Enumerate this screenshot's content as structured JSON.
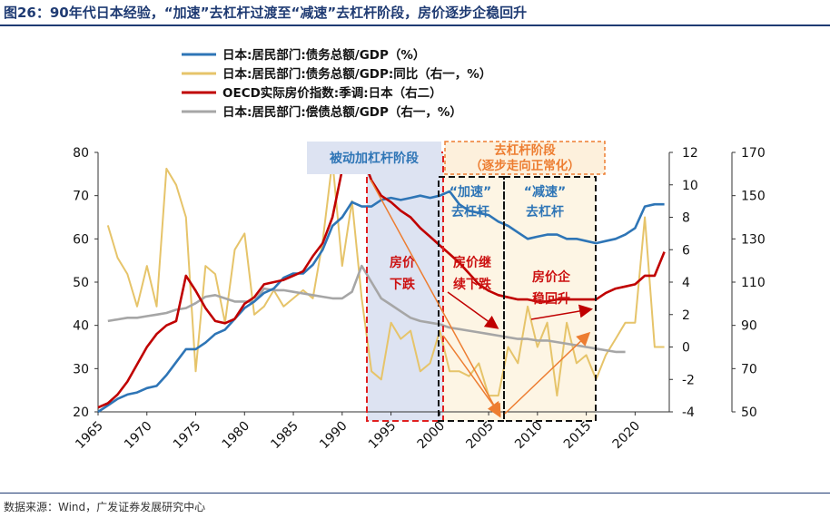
{
  "title": "图26：90年代日本经验，“加速”去杠杆过渡至“减速”去杠杆阶段，房价逐步企稳回升",
  "source": "数据来源：Wind，广发证券发展研究中心",
  "colors": {
    "debt_gdp": "#2e75b6",
    "debt_gdp_yoy": "#e6c46a",
    "house_price": "#c00000",
    "repay_gdp": "#a6a6a6",
    "red_box": "#e02020",
    "black_box": "#111111",
    "blue_shade": "#dde3f2",
    "yellow_shade": "#fdf5e4",
    "arrow": "#ed7d31"
  },
  "annotations": {
    "passive_stage": "被动加杠杆阶段",
    "delever_stage": "去杠杆阶段",
    "delever_sub": "（逐步走向正常化）",
    "accel_1": "“加速”",
    "accel_2": "去杠杆",
    "decel_1": "“减速”",
    "decel_2": "去杠杆",
    "price_fall_1": "房价",
    "price_fall_2": "下跌",
    "cont_fall_1": "房价继",
    "cont_fall_2": "续下跌",
    "stable_1": "房价企",
    "stable_2": "稳回升"
  },
  "chart_data": {
    "type": "line",
    "x_ticks": [
      "1965",
      "1970",
      "1975",
      "1980",
      "1985",
      "1990",
      "1995",
      "2000",
      "2005",
      "2010",
      "2015",
      "2020"
    ],
    "left_axis": {
      "ylim": [
        20,
        80
      ],
      "ticks": [
        "20",
        "30",
        "40",
        "50",
        "60",
        "70",
        "80"
      ]
    },
    "right1_axis": {
      "ylim": [
        -4,
        12
      ],
      "ticks": [
        "-4",
        "-2",
        "0",
        "2",
        "4",
        "6",
        "8",
        "10",
        "12"
      ]
    },
    "right2_axis": {
      "ylim": [
        50,
        170
      ],
      "ticks": [
        "50",
        "70",
        "90",
        "110",
        "130",
        "150",
        "170"
      ]
    },
    "series": [
      {
        "name": "日本:居民部门:债务总额/GDP（%）",
        "axis": "left",
        "x": [
          1965,
          1966,
          1967,
          1968,
          1969,
          1970,
          1971,
          1972,
          1973,
          1974,
          1975,
          1976,
          1977,
          1978,
          1979,
          1980,
          1981,
          1982,
          1983,
          1984,
          1985,
          1986,
          1987,
          1988,
          1989,
          1990,
          1991,
          1992,
          1993,
          1994,
          1995,
          1996,
          1997,
          1998,
          1999,
          2000,
          2001,
          2002,
          2003,
          2004,
          2005,
          2006,
          2007,
          2008,
          2009,
          2010,
          2011,
          2012,
          2013,
          2014,
          2015,
          2016,
          2017,
          2018,
          2019,
          2020,
          2021,
          2022,
          2023
        ],
        "y": [
          20,
          21.5,
          23,
          24,
          24.5,
          25.5,
          26,
          28.5,
          31.5,
          34.5,
          34.5,
          36,
          38,
          39,
          41.5,
          44,
          45.5,
          47.5,
          48.5,
          51,
          52,
          52,
          54,
          57.5,
          63,
          65,
          68.5,
          67.5,
          67.5,
          69,
          69.5,
          69,
          69.5,
          70,
          69.5,
          70,
          71,
          68,
          66.5,
          66,
          65.5,
          64,
          63,
          61.5,
          60,
          60.5,
          61,
          61,
          60,
          60,
          59.5,
          59,
          59.5,
          60,
          61,
          62.5,
          67.5,
          68,
          68
        ]
      },
      {
        "name": "日本:居民部门:债务总额/GDP:同比（右一，%）",
        "axis": "right1",
        "x": [
          1966,
          1967,
          1968,
          1969,
          1970,
          1971,
          1972,
          1973,
          1974,
          1975,
          1976,
          1977,
          1978,
          1979,
          1980,
          1981,
          1982,
          1983,
          1984,
          1985,
          1986,
          1987,
          1988,
          1989,
          1990,
          1991,
          1992,
          1993,
          1994,
          1995,
          1996,
          1997,
          1998,
          1999,
          2000,
          2001,
          2002,
          2003,
          2004,
          2005,
          2006,
          2007,
          2008,
          2009,
          2010,
          2011,
          2012,
          2013,
          2014,
          2015,
          2016,
          2017,
          2018,
          2019,
          2020,
          2021,
          2022,
          2023
        ],
        "y": [
          7.5,
          5.5,
          4.5,
          2.5,
          5,
          2.5,
          11,
          10,
          8,
          -1.5,
          5,
          4.5,
          1.5,
          6,
          7,
          2,
          2.5,
          3.5,
          2.5,
          3,
          3.5,
          3,
          6.5,
          11.5,
          5,
          9,
          3,
          -1.5,
          -2,
          1.5,
          0.5,
          1,
          -1.5,
          -1,
          1,
          -1.5,
          -1.5,
          -1.8,
          -1,
          -3,
          -3,
          0,
          -1,
          2.5,
          0,
          1.5,
          -3,
          1.5,
          -1,
          -0.5,
          -2,
          -0.5,
          0.5,
          1.5,
          1.5,
          8,
          0,
          0
        ]
      },
      {
        "name": "OECD实际房价指数:季调:日本（右二）",
        "axis": "right2",
        "x": [
          1965,
          1966,
          1967,
          1968,
          1969,
          1970,
          1971,
          1972,
          1973,
          1974,
          1975,
          1976,
          1977,
          1978,
          1979,
          1980,
          1981,
          1982,
          1983,
          1984,
          1985,
          1986,
          1987,
          1988,
          1989,
          1990,
          1991,
          1992,
          1993,
          1994,
          1995,
          1996,
          1997,
          1998,
          1999,
          2000,
          2001,
          2002,
          2003,
          2004,
          2005,
          2006,
          2007,
          2008,
          2009,
          2010,
          2011,
          2012,
          2013,
          2014,
          2015,
          2016,
          2017,
          2018,
          2019,
          2020,
          2021,
          2022,
          2023
        ],
        "y": [
          52,
          54,
          58,
          64,
          72,
          80,
          86,
          90,
          92,
          113,
          106,
          98,
          92,
          91,
          93,
          100,
          103,
          109,
          110,
          111,
          113,
          115,
          122,
          128,
          140,
          162,
          180,
          174,
          157,
          150,
          147,
          143,
          140,
          135,
          131,
          127,
          123,
          119,
          114,
          109,
          106,
          104,
          103,
          102,
          102,
          101,
          101,
          102,
          102,
          102,
          102,
          102,
          105,
          107,
          108,
          109,
          113,
          113,
          124
        ]
      },
      {
        "name": "日本:居民部门:偿债总额/GDP（右一，%）",
        "axis": "right1",
        "x": [
          1966,
          1967,
          1968,
          1969,
          1970,
          1971,
          1972,
          1973,
          1974,
          1975,
          1976,
          1977,
          1978,
          1979,
          1980,
          1981,
          1982,
          1983,
          1984,
          1985,
          1986,
          1987,
          1988,
          1989,
          1990,
          1991,
          1992,
          1993,
          1994,
          1995,
          1996,
          1997,
          1998,
          1999,
          2000,
          2001,
          2002,
          2003,
          2004,
          2005,
          2006,
          2007,
          2008,
          2009,
          2010,
          2011,
          2012,
          2013,
          2014,
          2015,
          2016,
          2017,
          2018,
          2019
        ],
        "y": [
          1.6,
          1.7,
          1.8,
          1.8,
          1.9,
          2,
          2.1,
          2.3,
          2.4,
          2.7,
          3.1,
          3.2,
          3,
          2.8,
          2.8,
          2.8,
          3.6,
          3.5,
          3.5,
          3.4,
          3.3,
          3.2,
          3.1,
          3,
          3,
          3.4,
          5,
          4,
          3,
          2.6,
          2.2,
          1.8,
          1.6,
          1.5,
          1.4,
          1.2,
          1.1,
          1,
          0.9,
          0.8,
          0.7,
          0.6,
          0.5,
          0.5,
          0.4,
          0.4,
          0.3,
          0.2,
          0.1,
          0,
          -0.1,
          -0.2,
          -0.3,
          -0.3
        ]
      }
    ]
  }
}
